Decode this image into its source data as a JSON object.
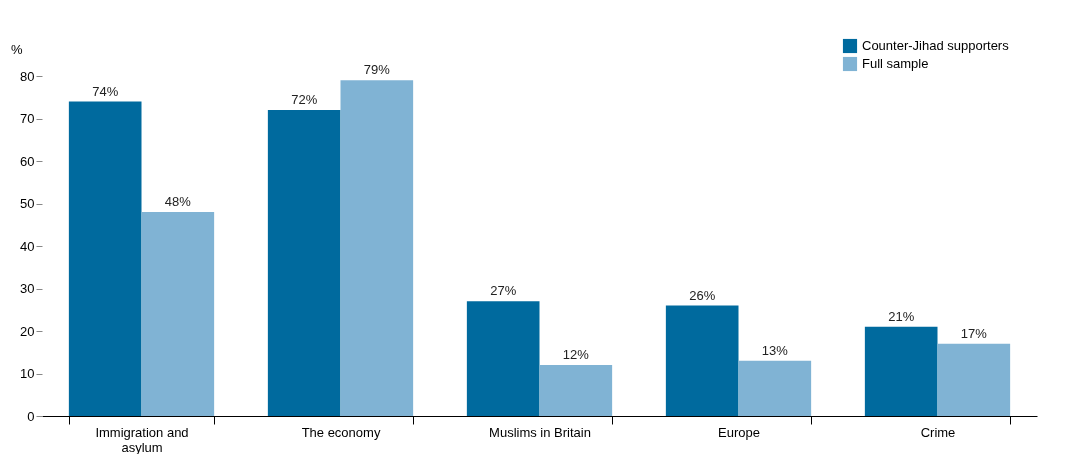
{
  "chart_data": {
    "type": "bar",
    "ylabel": "%",
    "categories": [
      "Immigration and asylum",
      "The economy",
      "Muslims in Britain",
      "Europe",
      "Crime"
    ],
    "series": [
      {
        "name": "Counter-Jihad supporters",
        "color": "#006a9e",
        "values": [
          74,
          72,
          27,
          26,
          21
        ],
        "value_labels": [
          "74%",
          "72%",
          "27%",
          "26%",
          "21%"
        ]
      },
      {
        "name": "Full sample",
        "color": "#80b3d4",
        "values": [
          48,
          79,
          12,
          13,
          17
        ],
        "value_labels": [
          "48%",
          "79%",
          "12%",
          "13%",
          "17%"
        ]
      }
    ],
    "ylim": [
      0,
      80
    ],
    "yticks": [
      0,
      10,
      20,
      30,
      40,
      50,
      60,
      70,
      80
    ],
    "grid": false,
    "legend": "top right"
  }
}
